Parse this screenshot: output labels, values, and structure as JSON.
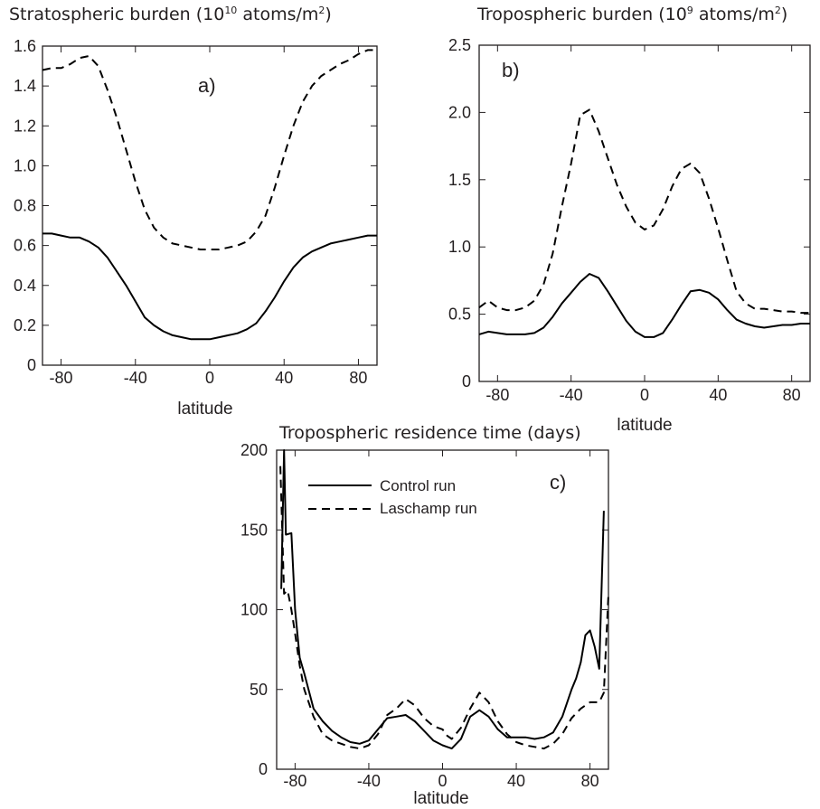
{
  "chart_data": [
    {
      "type": "line",
      "panel_label": "a)",
      "title_main": "Stratospheric burden (10",
      "title_sup1": "10",
      "title_mid": " atoms/m",
      "title_sup2": "2",
      "title_end": ")",
      "xlabel": "latitude",
      "ylabel": "",
      "xlim": [
        -90,
        90
      ],
      "ylim": [
        0,
        1.6
      ],
      "xticks": [
        -80,
        -40,
        0,
        40,
        80
      ],
      "yticks": [
        0,
        0.2,
        0.4,
        0.6,
        0.8,
        1.0,
        1.2,
        1.4,
        1.6
      ],
      "ytick_labels": [
        "0",
        "0.2",
        "0.4",
        "0.6",
        "0.8",
        "1.0",
        "1.2",
        "1.4",
        "1.6"
      ],
      "grid": false,
      "series": [
        {
          "style": "solid",
          "x": [
            -90,
            -85,
            -80,
            -75,
            -70,
            -65,
            -60,
            -55,
            -50,
            -45,
            -40,
            -35,
            -30,
            -25,
            -20,
            -15,
            -10,
            -5,
            0,
            5,
            10,
            15,
            20,
            25,
            30,
            35,
            40,
            45,
            50,
            55,
            60,
            65,
            70,
            75,
            80,
            85,
            90
          ],
          "values": [
            0.66,
            0.66,
            0.65,
            0.64,
            0.64,
            0.62,
            0.59,
            0.54,
            0.47,
            0.4,
            0.32,
            0.24,
            0.2,
            0.17,
            0.15,
            0.14,
            0.13,
            0.13,
            0.13,
            0.14,
            0.15,
            0.16,
            0.18,
            0.21,
            0.27,
            0.34,
            0.42,
            0.49,
            0.54,
            0.57,
            0.59,
            0.61,
            0.62,
            0.63,
            0.64,
            0.65,
            0.65
          ]
        },
        {
          "style": "dashed",
          "x": [
            -90,
            -85,
            -80,
            -75,
            -70,
            -65,
            -60,
            -55,
            -50,
            -45,
            -40,
            -35,
            -30,
            -25,
            -20,
            -15,
            -10,
            -5,
            0,
            5,
            10,
            15,
            20,
            25,
            30,
            35,
            40,
            45,
            50,
            55,
            60,
            65,
            70,
            75,
            80,
            85,
            90
          ],
          "values": [
            1.48,
            1.49,
            1.49,
            1.51,
            1.54,
            1.55,
            1.5,
            1.38,
            1.24,
            1.08,
            0.92,
            0.78,
            0.69,
            0.64,
            0.61,
            0.6,
            0.59,
            0.58,
            0.58,
            0.58,
            0.59,
            0.6,
            0.62,
            0.67,
            0.75,
            0.89,
            1.05,
            1.2,
            1.32,
            1.4,
            1.45,
            1.48,
            1.51,
            1.53,
            1.56,
            1.58,
            1.58
          ]
        }
      ]
    },
    {
      "type": "line",
      "panel_label": "b)",
      "title_main": "Tropospheric burden (10",
      "title_sup1": "9",
      "title_mid": " atoms/m",
      "title_sup2": "2",
      "title_end": ")",
      "xlabel": "latitude",
      "ylabel": "",
      "xlim": [
        -90,
        90
      ],
      "ylim": [
        0,
        2.5
      ],
      "xticks": [
        -80,
        -40,
        0,
        40,
        80
      ],
      "yticks": [
        0,
        0.5,
        1.0,
        1.5,
        2.0,
        2.5
      ],
      "ytick_labels": [
        "0",
        "0.5",
        "1.0",
        "1.5",
        "2.0",
        "2.5"
      ],
      "grid": false,
      "series": [
        {
          "style": "solid",
          "x": [
            -90,
            -85,
            -80,
            -75,
            -70,
            -65,
            -60,
            -55,
            -50,
            -45,
            -40,
            -35,
            -30,
            -25,
            -20,
            -15,
            -10,
            -5,
            0,
            5,
            10,
            15,
            20,
            25,
            30,
            35,
            40,
            45,
            50,
            55,
            60,
            65,
            70,
            75,
            80,
            85,
            90
          ],
          "values": [
            0.35,
            0.37,
            0.36,
            0.35,
            0.35,
            0.35,
            0.36,
            0.4,
            0.48,
            0.58,
            0.66,
            0.74,
            0.8,
            0.77,
            0.67,
            0.56,
            0.45,
            0.37,
            0.33,
            0.33,
            0.36,
            0.46,
            0.57,
            0.67,
            0.68,
            0.66,
            0.61,
            0.53,
            0.46,
            0.43,
            0.41,
            0.4,
            0.41,
            0.42,
            0.42,
            0.43,
            0.43
          ]
        },
        {
          "style": "dashed",
          "x": [
            -90,
            -85,
            -80,
            -75,
            -70,
            -65,
            -60,
            -55,
            -50,
            -45,
            -40,
            -35,
            -30,
            -25,
            -20,
            -15,
            -10,
            -5,
            0,
            5,
            10,
            15,
            20,
            25,
            30,
            35,
            40,
            45,
            50,
            55,
            60,
            65,
            70,
            75,
            80,
            85,
            90
          ],
          "values": [
            0.55,
            0.6,
            0.55,
            0.53,
            0.53,
            0.55,
            0.6,
            0.72,
            0.95,
            1.3,
            1.62,
            1.98,
            2.02,
            1.86,
            1.66,
            1.46,
            1.3,
            1.18,
            1.13,
            1.16,
            1.28,
            1.45,
            1.58,
            1.62,
            1.55,
            1.36,
            1.14,
            0.9,
            0.67,
            0.58,
            0.54,
            0.54,
            0.53,
            0.52,
            0.52,
            0.51,
            0.51
          ]
        }
      ]
    },
    {
      "type": "line",
      "panel_label": "c)",
      "title_main": "Tropospheric residence time (days)",
      "xlabel": "latitude",
      "ylabel": "",
      "xlim": [
        -90,
        90
      ],
      "ylim": [
        0,
        200
      ],
      "xticks": [
        -80,
        -40,
        0,
        40,
        80
      ],
      "yticks": [
        0,
        50,
        100,
        150,
        200
      ],
      "ytick_labels": [
        "0",
        "50",
        "100",
        "150",
        "200"
      ],
      "grid": false,
      "legend_position": "upper-center",
      "series": [
        {
          "name": "Control run",
          "style": "solid",
          "x": [
            -87.5,
            -86,
            -85,
            -82,
            -80,
            -77.5,
            -75,
            -70,
            -65,
            -60,
            -55,
            -50,
            -45,
            -40,
            -35,
            -30,
            -25,
            -20,
            -15,
            -10,
            -5,
            0,
            2.5,
            5,
            10,
            15,
            20,
            25,
            30,
            35,
            40,
            45,
            50,
            55,
            60,
            65,
            70,
            72.5,
            75,
            77.5,
            80,
            82.5,
            85,
            87.5
          ],
          "values": [
            113,
            200,
            147,
            148,
            100,
            70,
            60,
            38,
            30,
            24,
            20,
            17,
            16,
            18,
            25,
            32,
            33,
            34,
            30,
            24,
            18,
            15,
            14,
            13,
            19,
            33,
            37,
            33,
            25,
            20,
            20,
            20,
            19,
            20,
            23,
            33,
            50,
            57,
            67,
            84,
            87,
            77,
            63,
            162
          ]
        },
        {
          "name": "Laschamp run",
          "style": "dashed",
          "x": [
            -88,
            -86,
            -84,
            -82,
            -80,
            -77.5,
            -75,
            -70,
            -65,
            -60,
            -55,
            -50,
            -45,
            -40,
            -35,
            -30,
            -25,
            -20,
            -15,
            -10,
            -5,
            0,
            2.5,
            5,
            10,
            15,
            20,
            25,
            30,
            35,
            40,
            45,
            50,
            55,
            60,
            65,
            70,
            75,
            80,
            85,
            87.5,
            90
          ],
          "values": [
            190,
            110,
            112,
            100,
            85,
            65,
            50,
            33,
            22,
            18,
            16,
            14,
            13,
            15,
            22,
            34,
            38,
            44,
            40,
            32,
            27,
            25,
            21,
            19,
            26,
            38,
            48,
            42,
            30,
            22,
            17,
            15,
            14,
            13,
            16,
            22,
            32,
            38,
            42,
            42,
            48,
            110
          ]
        }
      ]
    }
  ]
}
